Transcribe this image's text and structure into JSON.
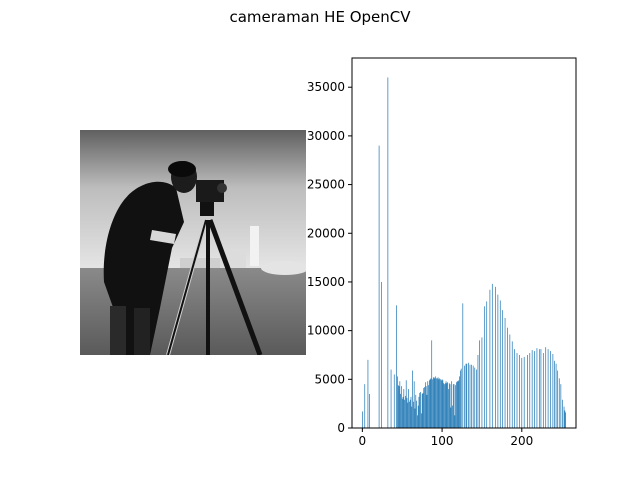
{
  "figure": {
    "title": "cameraman HE OpenCV"
  },
  "image": {
    "subject": "cameraman"
  },
  "chart_data": {
    "type": "bar",
    "title": "",
    "xlabel": "",
    "ylabel": "",
    "xlim": [
      -13,
      268
    ],
    "ylim": [
      0,
      38000
    ],
    "xticks": [
      0,
      100,
      200
    ],
    "yticks": [
      0,
      5000,
      10000,
      15000,
      20000,
      25000,
      30000,
      35000
    ],
    "grid": false,
    "bar_color": "#1f77b4",
    "x": [
      0,
      3,
      7,
      9,
      21,
      24,
      32,
      36,
      40,
      43,
      44,
      45,
      46,
      47,
      48,
      49,
      50,
      51,
      52,
      53,
      54,
      55,
      56,
      57,
      58,
      59,
      60,
      61,
      62,
      63,
      64,
      65,
      66,
      67,
      68,
      69,
      70,
      71,
      72,
      73,
      74,
      75,
      76,
      77,
      78,
      79,
      80,
      81,
      82,
      83,
      84,
      85,
      86,
      87,
      88,
      89,
      90,
      91,
      92,
      93,
      94,
      95,
      96,
      97,
      98,
      99,
      100,
      101,
      102,
      103,
      104,
      105,
      106,
      107,
      108,
      109,
      110,
      111,
      112,
      113,
      114,
      115,
      116,
      117,
      118,
      119,
      120,
      121,
      122,
      123,
      124,
      126,
      128,
      130,
      131,
      133,
      135,
      137,
      139,
      141,
      143,
      145,
      147,
      150,
      153,
      156,
      160,
      163,
      167,
      170,
      173,
      176,
      179,
      182,
      185,
      188,
      191,
      194,
      197,
      200,
      203,
      207,
      210,
      213,
      216,
      219,
      222,
      224,
      227,
      230,
      233,
      236,
      239,
      241,
      243,
      245,
      247,
      249,
      251,
      253,
      254,
      255
    ],
    "values": [
      1700,
      4500,
      7000,
      3500,
      29000,
      15000,
      36000,
      6000,
      5500,
      12600,
      5300,
      4400,
      4300,
      4800,
      3500,
      4300,
      3000,
      3200,
      4000,
      2900,
      3300,
      4900,
      3100,
      2600,
      4000,
      2700,
      2900,
      3200,
      2200,
      5900,
      2700,
      4800,
      2000,
      3400,
      2800,
      1300,
      2300,
      3200,
      3600,
      3700,
      1500,
      3500,
      3600,
      4100,
      4200,
      4700,
      4300,
      3400,
      4800,
      4400,
      4900,
      5000,
      5100,
      9000,
      5000,
      5200,
      5200,
      5100,
      5300,
      5100,
      5100,
      5200,
      5000,
      5100,
      5000,
      4900,
      5000,
      4900,
      4600,
      4500,
      4600,
      4800,
      4600,
      4700,
      4000,
      4600,
      4500,
      2100,
      4800,
      2300,
      4500,
      4500,
      1300,
      4400,
      4700,
      4800,
      4800,
      4900,
      5300,
      5900,
      6100,
      12800,
      6400,
      6600,
      6600,
      6700,
      6500,
      6500,
      6400,
      6200,
      6000,
      7500,
      9000,
      9300,
      12500,
      13000,
      14200,
      14800,
      14500,
      13700,
      13100,
      12100,
      11300,
      10300,
      9600,
      8900,
      8100,
      7700,
      7500,
      7200,
      7300,
      7500,
      7700,
      8000,
      7900,
      8200,
      8100,
      8100,
      7700,
      8300,
      8100,
      7900,
      7600,
      6900,
      6600,
      5900,
      5100,
      4500,
      2900,
      2200,
      1800,
      1600
    ]
  }
}
